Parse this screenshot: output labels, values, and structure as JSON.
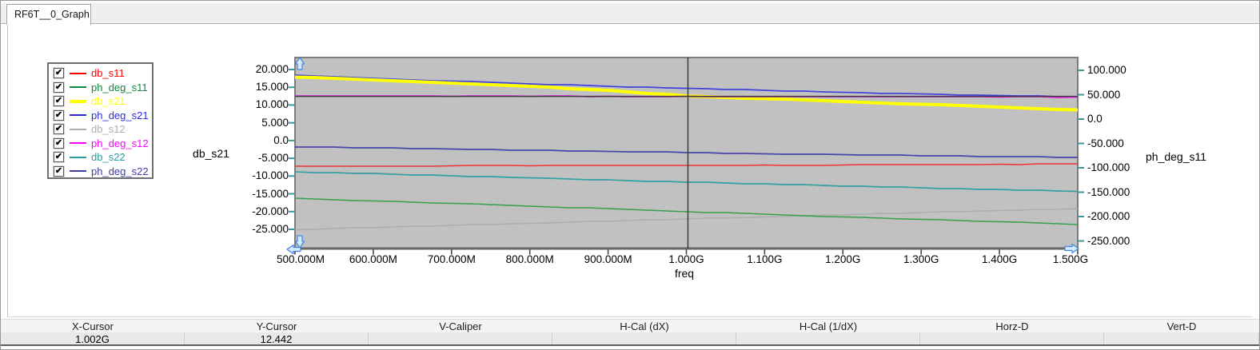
{
  "tab": {
    "label": "RF6T__0_Graph"
  },
  "legend": {
    "items": [
      {
        "label": "db_s11",
        "color": "#ff0000",
        "checked": true,
        "thick": false
      },
      {
        "label": "ph_deg_s11",
        "color": "#0c8a3e",
        "checked": true,
        "thick": false
      },
      {
        "label": "db_s21",
        "color": "#ffff00",
        "checked": true,
        "thick": true
      },
      {
        "label": "ph_deg_s21",
        "color": "#2a2ae0",
        "checked": true,
        "thick": false
      },
      {
        "label": "db_s12",
        "color": "#aeaeae",
        "checked": true,
        "thick": false
      },
      {
        "label": "ph_deg_s12",
        "color": "#ff00ff",
        "checked": true,
        "thick": false
      },
      {
        "label": "db_s22",
        "color": "#2b9b9b",
        "checked": true,
        "thick": false
      },
      {
        "label": "ph_deg_s22",
        "color": "#3c3ca6",
        "checked": true,
        "thick": false
      }
    ],
    "checkmark": "✔"
  },
  "chart_data": {
    "type": "line",
    "xlabel": "freq",
    "x_unit": "MHz",
    "x": [
      500,
      600,
      700,
      800,
      900,
      1000,
      1100,
      1200,
      1300,
      1400,
      1500
    ],
    "x_ticks": [
      {
        "mhz": 500,
        "label": "500.000M"
      },
      {
        "mhz": 600,
        "label": "600.000M"
      },
      {
        "mhz": 700,
        "label": "700.000M"
      },
      {
        "mhz": 800,
        "label": "800.000M"
      },
      {
        "mhz": 900,
        "label": "900.000M"
      },
      {
        "mhz": 1000,
        "label": "1.000G"
      },
      {
        "mhz": 1100,
        "label": "1.100G"
      },
      {
        "mhz": 1200,
        "label": "1.200G"
      },
      {
        "mhz": 1300,
        "label": "1.300G"
      },
      {
        "mhz": 1400,
        "label": "1.400G"
      },
      {
        "mhz": 1500,
        "label": "1.500G"
      }
    ],
    "left_axis": {
      "label": "db_s21",
      "range": [
        20,
        -25
      ],
      "ticks": [
        {
          "v": 20,
          "label": "20.000"
        },
        {
          "v": 15,
          "label": "15.000"
        },
        {
          "v": 10,
          "label": "10.000"
        },
        {
          "v": 5,
          "label": "5.000"
        },
        {
          "v": 0,
          "label": "0.0"
        },
        {
          "v": -5,
          "label": "-5.000"
        },
        {
          "v": -10,
          "label": "-10.000"
        },
        {
          "v": -15,
          "label": "-15.000"
        },
        {
          "v": -20,
          "label": "-20.000"
        },
        {
          "v": -25,
          "label": "-25.000"
        }
      ]
    },
    "right_axis": {
      "label": "ph_deg_s11",
      "range": [
        100,
        -250
      ],
      "ticks": [
        {
          "v": 100,
          "label": "100.000"
        },
        {
          "v": 50,
          "label": "50.000"
        },
        {
          "v": 0,
          "label": "0.0"
        },
        {
          "v": -50,
          "label": "-50.000"
        },
        {
          "v": -100,
          "label": "-100.000"
        },
        {
          "v": -150,
          "label": "-150.000"
        },
        {
          "v": -200,
          "label": "-200.000"
        },
        {
          "v": -250,
          "label": "-250.000"
        }
      ]
    },
    "series": [
      {
        "name": "db_s12",
        "axis": "left",
        "color": "#adadad",
        "width": 1.5,
        "values": [
          -25.1,
          -24.5,
          -23.9,
          -23.3,
          -22.7,
          -22.1,
          -21.5,
          -20.9,
          -20.3,
          -19.7,
          -19.2
        ]
      },
      {
        "name": "ph_deg_s11",
        "axis": "right",
        "color": "#36a14a",
        "width": 1.6,
        "values": [
          -162,
          -168,
          -173,
          -179,
          -184,
          -190,
          -195,
          -201,
          -206,
          -211,
          -216
        ]
      },
      {
        "name": "db_s22",
        "axis": "left",
        "color": "#35a1a1",
        "width": 1.7,
        "values": [
          -8.8,
          -9.3,
          -9.9,
          -10.5,
          -11.1,
          -11.7,
          -12.2,
          -12.8,
          -13.3,
          -13.8,
          -14.3
        ]
      },
      {
        "name": "db_s11",
        "axis": "left",
        "color": "#ee3333",
        "width": 1.6,
        "values": [
          -7.2,
          -7.2,
          -7.1,
          -7.1,
          -7.0,
          -7.0,
          -6.9,
          -6.9,
          -6.8,
          -6.7,
          -6.6
        ]
      },
      {
        "name": "ph_deg_s22",
        "axis": "right",
        "color": "#4747ab",
        "width": 1.7,
        "values": [
          -57,
          -59,
          -61.5,
          -64,
          -66,
          -68.5,
          -71,
          -73,
          -75,
          -77,
          -78.5
        ]
      },
      {
        "name": "ph_deg_s21",
        "axis": "right",
        "color": "#4242dd",
        "width": 1.7,
        "values": [
          90,
          84,
          78,
          72.5,
          67.5,
          63,
          59,
          55,
          51.5,
          48.5,
          46
        ]
      },
      {
        "name": "db_s21",
        "axis": "left",
        "color": "#ffff00",
        "width": 4,
        "values": [
          17.9,
          17.1,
          16.2,
          15.3,
          14.1,
          12.6,
          11.8,
          11.0,
          10.2,
          9.4,
          8.6
        ]
      },
      {
        "name": "ph_deg_s12",
        "axis": "right",
        "color": "#ee22ee",
        "width": 1.7,
        "values": [
          47.5,
          47.3,
          47.1,
          46.9,
          46.6,
          46.4,
          46.1,
          45.8,
          45.5,
          45.2,
          45.0
        ]
      }
    ],
    "cursor": {
      "x_mhz": 1002,
      "y_left": 12.442
    },
    "style": {
      "plot_bg": "#c1c1c1",
      "plot_border": "#7d7d7d",
      "plot_border_bottom": "#676767",
      "cursor_color": "#3c3c3c",
      "y_tick_color": "#2f9c9c",
      "x_tick_color": "#474747",
      "arrow_fill": "#d7e9fc",
      "arrow_stroke": "#3f86dc"
    }
  },
  "status_bar": {
    "columns": [
      {
        "label": "X-Cursor",
        "value": "1.002G"
      },
      {
        "label": "Y-Cursor",
        "value": "12.442"
      },
      {
        "label": "V-Caliper",
        "value": ""
      },
      {
        "label": "H-Cal (dX)",
        "value": ""
      },
      {
        "label": "H-Cal (1/dX)",
        "value": ""
      },
      {
        "label": "Horz-D",
        "value": ""
      },
      {
        "label": "Vert-D",
        "value": ""
      }
    ]
  }
}
